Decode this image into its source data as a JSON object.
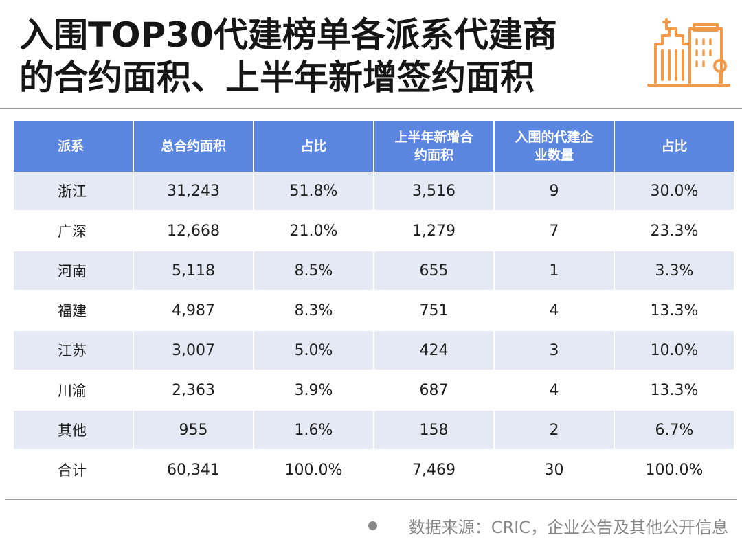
{
  "title": {
    "line1": "入围TOP30代建榜单各派系代建商",
    "line2": "的合约面积、上半年新增签约面积"
  },
  "icon": "building-icon",
  "accent_color": "#f09a4a",
  "header_color": "#5b86e0",
  "stripe_color": "#e4e9f4",
  "table": {
    "headers": [
      "派系",
      "总合约面积",
      "占比",
      "上半年新增合\n约面积",
      "入围的代建企\n业数量",
      "占比"
    ],
    "rows": [
      [
        "浙江",
        "31,243",
        "51.8%",
        "3,516",
        "9",
        "30.0%"
      ],
      [
        "广深",
        "12,668",
        "21.0%",
        "1,279",
        "7",
        "23.3%"
      ],
      [
        "河南",
        "5,118",
        "8.5%",
        "655",
        "1",
        "3.3%"
      ],
      [
        "福建",
        "4,987",
        "8.3%",
        "751",
        "4",
        "13.3%"
      ],
      [
        "江苏",
        "3,007",
        "5.0%",
        "424",
        "3",
        "10.0%"
      ],
      [
        "川渝",
        "2,363",
        "3.9%",
        "687",
        "4",
        "13.3%"
      ],
      [
        "其他",
        "955",
        "1.6%",
        "158",
        "2",
        "6.7%"
      ],
      [
        "合计",
        "60,341",
        "100.0%",
        "7,469",
        "30",
        "100.0%"
      ]
    ]
  },
  "source": "数据来源：CRIC，企业公告及其他公开信息"
}
